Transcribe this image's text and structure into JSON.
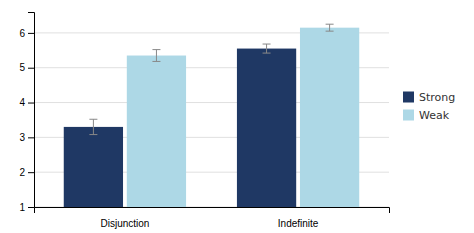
{
  "chart_data": {
    "type": "bar",
    "categories": [
      "Disjunction",
      "Indefinite"
    ],
    "series": [
      {
        "name": "Strong",
        "color": "#1f3864",
        "values": [
          3.3,
          5.55
        ],
        "errors": [
          0.22,
          0.13
        ]
      },
      {
        "name": "Weak",
        "color": "#add8e6",
        "values": [
          5.35,
          6.15
        ],
        "errors": [
          0.17,
          0.1
        ]
      }
    ],
    "ylim": [
      1,
      6.6
    ],
    "yticks": [
      1,
      2,
      3,
      4,
      5,
      6
    ],
    "grid": true,
    "legend": "right"
  }
}
